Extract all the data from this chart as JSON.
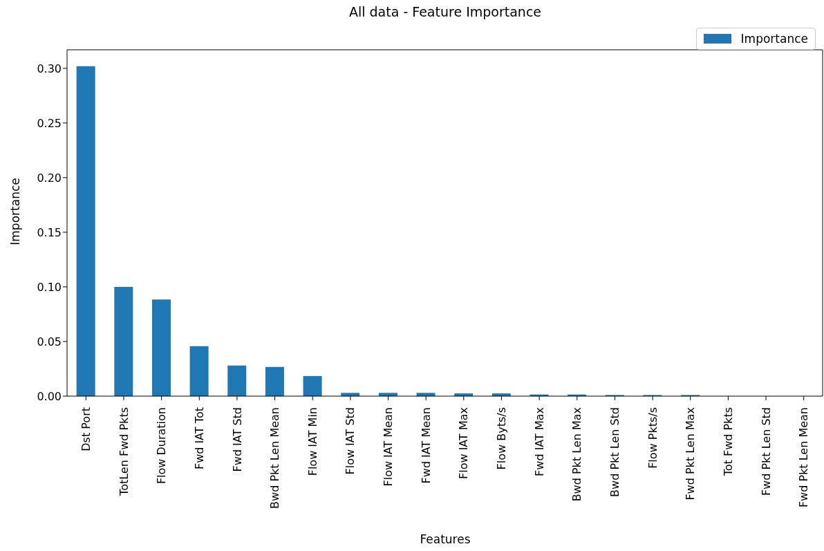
{
  "chart_data": {
    "type": "bar",
    "title": "All data - Feature Importance",
    "xlabel": "Features",
    "ylabel": "Importance",
    "categories": [
      "Dst Port",
      "TotLen Fwd Pkts",
      "Flow Duration",
      "Fwd IAT Tot",
      "Fwd IAT Std",
      "Bwd Pkt Len Mean",
      "Flow IAT Min",
      "Flow IAT Std",
      "Flow IAT Mean",
      "Fwd IAT Mean",
      "Flow IAT Max",
      "Flow Byts/s",
      "Fwd IAT Max",
      "Bwd Pkt Len Max",
      "Bwd Pkt Len Std",
      "Flow Pkts/s",
      "Fwd Pkt Len Max",
      "Tot Fwd Pkts",
      "Fwd Pkt Len Std",
      "Fwd Pkt Len Mean"
    ],
    "series": [
      {
        "name": "Importance",
        "color": "#1f77b4",
        "values": [
          0.302,
          0.1,
          0.0885,
          0.0457,
          0.028,
          0.0267,
          0.0184,
          0.003,
          0.003,
          0.003,
          0.0025,
          0.0025,
          0.0015,
          0.0015,
          0.001,
          0.001,
          0.001,
          0,
          0,
          0
        ]
      }
    ],
    "ylim": [
      0,
      0.317
    ],
    "yticks": [
      {
        "value": 0,
        "label": "0.00"
      },
      {
        "value": 0.05,
        "label": "0.05"
      },
      {
        "value": 0.1,
        "label": "0.10"
      },
      {
        "value": 0.15,
        "label": "0.15"
      },
      {
        "value": 0.2,
        "label": "0.20"
      },
      {
        "value": 0.25,
        "label": "0.25"
      },
      {
        "value": 0.3,
        "label": "0.30"
      }
    ],
    "legend": "top right",
    "grid": false
  }
}
